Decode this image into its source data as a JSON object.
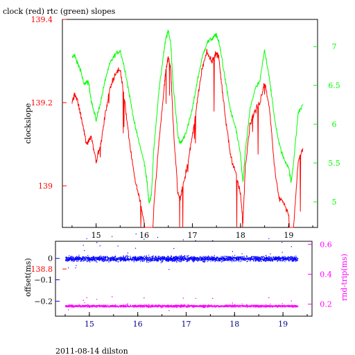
{
  "figure": {
    "title": "clock (red) rtc (green) slopes",
    "footer": "2011-08-14 dilston"
  },
  "colors": {
    "clock": "#ff0000",
    "rtc": "#00ff00",
    "offset": "#0000ff",
    "rndtrip": "#ff00ff",
    "frame": "#000000",
    "bottom_x_ticks": "#000080"
  },
  "chart_data": [
    {
      "type": "line",
      "title": "clock (red) rtc (green) slopes",
      "xlabel": "",
      "ylabel": "clockslope",
      "xlim": [
        14.3,
        19.6
      ],
      "ylim": [
        138.9,
        139.4
      ],
      "y2lim": [
        4.67,
        7.35
      ],
      "x_ticks": [
        15,
        16,
        17,
        18,
        19
      ],
      "x_tick_labels": [
        "15",
        "16",
        "17",
        "18",
        "19"
      ],
      "y_ticks": [
        139.4,
        139.2,
        139,
        138.8
      ],
      "y_tick_labels": [
        "139.4",
        "139.2",
        "139",
        "138.8"
      ],
      "y2_ticks": [
        7,
        6.5,
        6,
        5.5,
        5
      ],
      "y2_tick_labels": [
        "7",
        "6.5",
        "6",
        "5.5",
        "5"
      ],
      "series": [
        {
          "name": "clock",
          "axis": "left",
          "x": [
            14.5,
            14.55,
            14.6,
            14.68,
            14.75,
            14.8,
            14.85,
            14.9,
            15.0,
            15.1,
            15.2,
            15.3,
            15.4,
            15.5,
            15.6,
            15.7,
            15.8,
            15.9,
            16.0,
            16.05,
            16.1,
            16.15,
            16.2,
            16.3,
            16.4,
            16.45,
            16.5,
            16.55,
            16.6,
            16.7,
            16.75,
            16.8,
            16.9,
            17.0,
            17.1,
            17.2,
            17.3,
            17.4,
            17.5,
            17.55,
            17.6,
            17.7,
            17.8,
            17.9,
            18.0,
            18.05,
            18.1,
            18.2,
            18.3,
            18.4,
            18.5,
            18.6,
            18.7,
            18.8,
            18.9,
            19.0,
            19.05,
            19.1,
            19.2,
            19.3
          ],
          "y": [
            139.2,
            139.22,
            139.21,
            139.17,
            139.13,
            139.1,
            139.11,
            139.12,
            139.06,
            139.1,
            139.18,
            139.24,
            139.27,
            139.28,
            139.2,
            139.1,
            139.02,
            138.97,
            138.91,
            138.85,
            138.78,
            138.82,
            138.95,
            139.1,
            139.22,
            139.28,
            139.31,
            139.28,
            139.15,
            138.98,
            138.97,
            139.0,
            139.05,
            139.12,
            139.2,
            139.28,
            139.32,
            139.3,
            139.32,
            139.31,
            139.25,
            139.15,
            139.07,
            139.03,
            138.98,
            138.91,
            139.05,
            139.15,
            139.18,
            139.2,
            139.25,
            139.19,
            139.05,
            138.97,
            138.96,
            138.93,
            138.84,
            138.9,
            139.06,
            139.09
          ]
        },
        {
          "name": "rtc",
          "axis": "right",
          "x": [
            14.5,
            14.55,
            14.6,
            14.68,
            14.75,
            14.8,
            14.85,
            14.9,
            15.0,
            15.1,
            15.2,
            15.3,
            15.4,
            15.5,
            15.6,
            15.7,
            15.8,
            15.9,
            16.0,
            16.05,
            16.1,
            16.15,
            16.2,
            16.3,
            16.4,
            16.45,
            16.5,
            16.55,
            16.6,
            16.7,
            16.75,
            16.8,
            16.9,
            17.0,
            17.1,
            17.2,
            17.3,
            17.4,
            17.5,
            17.55,
            17.6,
            17.7,
            17.8,
            17.9,
            18.0,
            18.05,
            18.1,
            18.2,
            18.3,
            18.4,
            18.5,
            18.6,
            18.7,
            18.8,
            18.9,
            19.0,
            19.05,
            19.1,
            19.2,
            19.3
          ],
          "y": [
            6.85,
            6.9,
            6.8,
            6.7,
            6.5,
            6.55,
            6.52,
            6.3,
            6.05,
            6.3,
            6.6,
            6.8,
            6.9,
            6.95,
            6.7,
            6.35,
            6.0,
            5.75,
            5.5,
            5.3,
            4.98,
            5.1,
            5.7,
            6.4,
            6.9,
            7.1,
            7.2,
            7.05,
            6.5,
            5.85,
            5.75,
            5.8,
            5.95,
            6.2,
            6.55,
            6.85,
            7.05,
            7.1,
            7.15,
            7.05,
            6.9,
            6.5,
            6.15,
            5.95,
            5.6,
            5.25,
            5.65,
            6.2,
            6.45,
            6.55,
            6.95,
            6.6,
            6.1,
            5.75,
            5.55,
            5.45,
            5.25,
            5.5,
            6.15,
            6.25
          ]
        }
      ]
    },
    {
      "type": "scatter",
      "xlabel": "",
      "ylabel": "offset(ms)",
      "y2label": "rnd-trip(ms)",
      "xlim": [
        14.3,
        19.6
      ],
      "ylim": [
        -0.27,
        0.08
      ],
      "y2lim": [
        0.12,
        0.62
      ],
      "x_ticks": [
        15,
        16,
        17,
        18,
        19
      ],
      "x_tick_labels": [
        "15",
        "16",
        "17",
        "18",
        "19"
      ],
      "y_ticks": [
        0,
        -0.1,
        -0.2
      ],
      "y_tick_labels": [
        "0",
        "−0.1",
        "−0.2"
      ],
      "y2_ticks": [
        0.6,
        0.4,
        0.2
      ],
      "y2_tick_labels": [
        "0.6",
        "0.4",
        "0.2"
      ],
      "series": [
        {
          "name": "offset",
          "axis": "left",
          "x_range": [
            14.5,
            19.3
          ],
          "center": 0.0,
          "spread": 0.02
        },
        {
          "name": "rnd-trip",
          "axis": "right",
          "x_range": [
            14.5,
            19.3
          ],
          "center": 0.19,
          "spread": 0.012
        }
      ]
    }
  ]
}
